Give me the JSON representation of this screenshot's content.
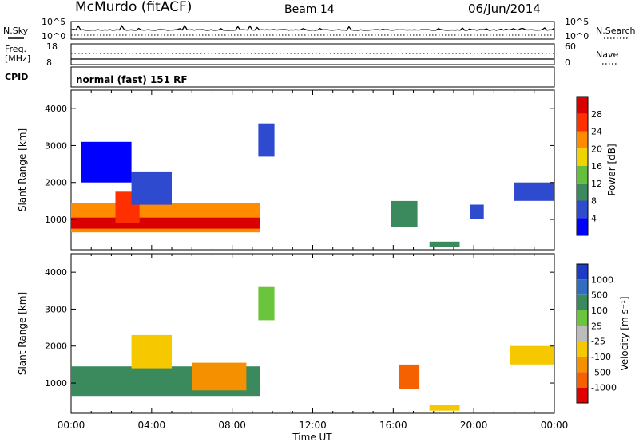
{
  "header": {
    "station": "McMurdo (fitACF)",
    "beam": "Beam 14",
    "date": "06/Jun/2014"
  },
  "noise_panel": {
    "left_label": "N.Sky",
    "right_label": "N.Search",
    "left_ticks": [
      "10^5",
      "10^0"
    ],
    "right_ticks": [
      "10^5",
      "10^0"
    ]
  },
  "freq_panel": {
    "left_label_top": "Freq.",
    "left_label_bottom": "[MHz]",
    "right_label": "Nave",
    "left_ticks": [
      "18",
      "8"
    ],
    "right_ticks": [
      "60",
      "0"
    ]
  },
  "cpid": {
    "label": "CPID",
    "mode": "normal (fast) 151 RF"
  },
  "x_axis": {
    "ticks": [
      "00:00",
      "04:00",
      "08:00",
      "12:00",
      "16:00",
      "20:00",
      "00:00"
    ],
    "label": "Time UT"
  },
  "y_axis": {
    "label": "Slant Range [km]",
    "ticks": [
      "1000",
      "2000",
      "3000",
      "4000"
    ]
  },
  "power_colorbar": {
    "label": "Power [dB]",
    "ticks": [
      "4",
      "8",
      "12",
      "16",
      "20",
      "24",
      "28"
    ],
    "colors": [
      "#0000ff",
      "#2e4bd0",
      "#3a8a5e",
      "#64c03c",
      "#f0d400",
      "#ff8c00",
      "#ff3000",
      "#d80000"
    ]
  },
  "velocity_colorbar": {
    "label": "Velocity [m s⁻¹]",
    "ticks": [
      "1000",
      "500",
      "100",
      "25",
      "-25",
      "-100",
      "-500",
      "-1000"
    ],
    "colors": [
      "#1c3cc8",
      "#2f6ec0",
      "#3a8a5e",
      "#6ac43c",
      "#bcbcbc",
      "#f5c800",
      "#f59000",
      "#f56000",
      "#e00000"
    ]
  },
  "chart_data": [
    {
      "type": "heatmap",
      "quantity": "Power",
      "xlim": [
        0,
        24
      ],
      "ylim": [
        180,
        4500
      ],
      "regions": [
        {
          "t0": 0.0,
          "t1": 9.4,
          "r0": 650,
          "r1": 1450,
          "level": 5
        },
        {
          "t0": 0.0,
          "t1": 9.4,
          "r0": 750,
          "r1": 1050,
          "level": 7
        },
        {
          "t0": 2.2,
          "t1": 3.4,
          "r0": 900,
          "r1": 1750,
          "level": 6
        },
        {
          "t0": 9.3,
          "t1": 10.1,
          "r0": 2700,
          "r1": 3600,
          "level": 1
        },
        {
          "t0": 15.9,
          "t1": 17.2,
          "r0": 800,
          "r1": 1500,
          "level": 2
        },
        {
          "t0": 17.8,
          "t1": 19.3,
          "r0": 250,
          "r1": 400,
          "level": 2
        },
        {
          "t0": 19.8,
          "t1": 20.5,
          "r0": 1000,
          "r1": 1400,
          "level": 1
        },
        {
          "t0": 22.0,
          "t1": 24.0,
          "r0": 1500,
          "r1": 2000,
          "level": 1
        },
        {
          "t0": 3.0,
          "t1": 5.0,
          "r0": 1400,
          "r1": 2300,
          "level": 1
        },
        {
          "t0": 0.5,
          "t1": 3.0,
          "r0": 2000,
          "r1": 3100,
          "level": 0
        }
      ]
    },
    {
      "type": "heatmap",
      "quantity": "Velocity",
      "xlim": [
        0,
        24
      ],
      "ylim": [
        180,
        4500
      ],
      "regions": [
        {
          "t0": 0.0,
          "t1": 9.4,
          "r0": 650,
          "r1": 1450,
          "level": 2
        },
        {
          "t0": 6.0,
          "t1": 8.7,
          "r0": 800,
          "r1": 1550,
          "level": 6
        },
        {
          "t0": 16.3,
          "t1": 17.3,
          "r0": 850,
          "r1": 1500,
          "level": 7
        },
        {
          "t0": 9.3,
          "t1": 10.1,
          "r0": 2700,
          "r1": 3600,
          "level": 3
        },
        {
          "t0": 17.8,
          "t1": 19.3,
          "r0": 250,
          "r1": 400,
          "level": 5
        },
        {
          "t0": 21.8,
          "t1": 24.0,
          "r0": 1500,
          "r1": 2000,
          "level": 5
        },
        {
          "t0": 3.0,
          "t1": 5.0,
          "r0": 1400,
          "r1": 2300,
          "level": 5
        }
      ]
    }
  ]
}
